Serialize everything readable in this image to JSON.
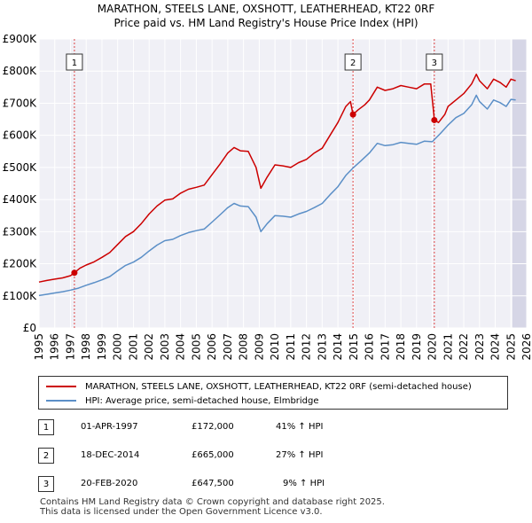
{
  "chart_data": {
    "type": "line",
    "title": "MARATHON, STEELS LANE, OXSHOTT, LEATHERHEAD, KT22 0RF",
    "subtitle": "Price paid vs. HM Land Registry's House Price Index (HPI)",
    "xlabel": "",
    "ylabel": "",
    "xlim": [
      1995,
      2026
    ],
    "ylim": [
      0,
      900000
    ],
    "y_ticks": [
      0,
      100000,
      200000,
      300000,
      400000,
      500000,
      600000,
      700000,
      800000,
      900000
    ],
    "y_tick_labels": [
      "£0",
      "£100K",
      "£200K",
      "£300K",
      "£400K",
      "£500K",
      "£600K",
      "£700K",
      "£800K",
      "£900K"
    ],
    "x_ticks": [
      1995,
      1996,
      1997,
      1998,
      1999,
      2000,
      2001,
      2002,
      2003,
      2004,
      2005,
      2006,
      2007,
      2008,
      2009,
      2010,
      2011,
      2012,
      2013,
      2014,
      2015,
      2016,
      2017,
      2018,
      2019,
      2020,
      2021,
      2022,
      2023,
      2024,
      2025,
      2026
    ],
    "x_tick_labels": [
      "1995",
      "1996",
      "1997",
      "1998",
      "1999",
      "2000",
      "2001",
      "2002",
      "2003",
      "2004",
      "2005",
      "2006",
      "2007",
      "2008",
      "2009",
      "2010",
      "2011",
      "2012",
      "2013",
      "2014",
      "2015",
      "2016",
      "2017",
      "2018",
      "2019",
      "2020",
      "2021",
      "2022",
      "2023",
      "2024",
      "2025",
      "2026"
    ],
    "grid": true,
    "future_shade_from": 2025.1,
    "series": [
      {
        "name": "MARATHON, STEELS LANE, OXSHOTT, LEATHERHEAD, KT22 0RF (semi-detached house)",
        "color": "#cc0000",
        "x": [
          1995.0,
          1995.5,
          1996.0,
          1996.5,
          1997.0,
          1997.25,
          1997.6,
          1998.0,
          1998.5,
          1999.0,
          1999.5,
          2000.0,
          2000.5,
          2001.0,
          2001.5,
          2002.0,
          2002.5,
          2003.0,
          2003.5,
          2004.0,
          2004.5,
          2005.0,
          2005.5,
          2006.0,
          2006.5,
          2007.0,
          2007.4,
          2007.8,
          2008.3,
          2008.8,
          2009.1,
          2009.5,
          2010.0,
          2010.5,
          2011.0,
          2011.5,
          2012.0,
          2012.5,
          2013.0,
          2013.5,
          2014.0,
          2014.5,
          2014.8,
          2014.96,
          2015.3,
          2015.7,
          2016.0,
          2016.5,
          2017.0,
          2017.5,
          2018.0,
          2018.5,
          2019.0,
          2019.5,
          2019.9,
          2020.13,
          2020.4,
          2020.8,
          2021.0,
          2021.5,
          2022.0,
          2022.5,
          2022.8,
          2023.0,
          2023.5,
          2023.9,
          2024.3,
          2024.7,
          2025.0,
          2025.3
        ],
        "values": [
          143000,
          148000,
          152000,
          156000,
          163000,
          172000,
          186000,
          196000,
          206000,
          220000,
          235000,
          260000,
          285000,
          300000,
          325000,
          355000,
          380000,
          398000,
          402000,
          420000,
          432000,
          438000,
          445000,
          478000,
          510000,
          545000,
          562000,
          552000,
          550000,
          500000,
          435000,
          470000,
          508000,
          505000,
          500000,
          515000,
          525000,
          545000,
          560000,
          600000,
          640000,
          690000,
          705000,
          665000,
          680000,
          695000,
          710000,
          750000,
          740000,
          745000,
          755000,
          750000,
          745000,
          760000,
          760000,
          647500,
          640000,
          665000,
          690000,
          710000,
          730000,
          760000,
          790000,
          770000,
          745000,
          775000,
          765000,
          750000,
          775000,
          770000
        ]
      },
      {
        "name": "HPI: Average price, semi-detached house, Elmbridge",
        "color": "#5b8fc7",
        "x": [
          1995.0,
          1995.5,
          1996.0,
          1996.5,
          1997.0,
          1997.5,
          1998.0,
          1998.5,
          1999.0,
          1999.5,
          2000.0,
          2000.5,
          2001.0,
          2001.5,
          2002.0,
          2002.5,
          2003.0,
          2003.5,
          2004.0,
          2004.5,
          2005.0,
          2005.5,
          2006.0,
          2006.5,
          2007.0,
          2007.4,
          2007.8,
          2008.3,
          2008.8,
          2009.1,
          2009.5,
          2010.0,
          2010.5,
          2011.0,
          2011.5,
          2012.0,
          2012.5,
          2013.0,
          2013.5,
          2014.0,
          2014.5,
          2015.0,
          2015.5,
          2016.0,
          2016.5,
          2017.0,
          2017.5,
          2018.0,
          2018.5,
          2019.0,
          2019.5,
          2020.0,
          2020.5,
          2021.0,
          2021.5,
          2022.0,
          2022.5,
          2022.8,
          2023.0,
          2023.5,
          2023.9,
          2024.3,
          2024.7,
          2025.0,
          2025.3
        ],
        "values": [
          101000,
          105000,
          109000,
          113000,
          118000,
          124000,
          133000,
          141000,
          150000,
          160000,
          178000,
          195000,
          205000,
          220000,
          240000,
          258000,
          272000,
          276000,
          288000,
          297000,
          303000,
          308000,
          330000,
          352000,
          375000,
          388000,
          380000,
          378000,
          345000,
          300000,
          325000,
          350000,
          348000,
          345000,
          355000,
          363000,
          375000,
          388000,
          415000,
          440000,
          475000,
          500000,
          522000,
          545000,
          575000,
          568000,
          571000,
          578000,
          575000,
          572000,
          582000,
          580000,
          605000,
          632000,
          655000,
          668000,
          695000,
          725000,
          705000,
          682000,
          710000,
          702000,
          690000,
          712000,
          710000
        ]
      }
    ],
    "sales": [
      {
        "label": "1",
        "x": 1997.25,
        "price": 172000
      },
      {
        "label": "2",
        "x": 2014.96,
        "price": 665000
      },
      {
        "label": "3",
        "x": 2020.13,
        "price": 647500
      }
    ]
  },
  "legend": {
    "entries": [
      {
        "label": "MARATHON, STEELS LANE, OXSHOTT, LEATHERHEAD, KT22 0RF (semi-detached house)",
        "color": "#cc0000"
      },
      {
        "label": "HPI: Average price, semi-detached house, Elmbridge",
        "color": "#5b8fc7"
      }
    ]
  },
  "transactions": [
    {
      "num": "1",
      "date": "01-APR-1997",
      "price": "£172,000",
      "hpi": "41% ↑ HPI"
    },
    {
      "num": "2",
      "date": "18-DEC-2014",
      "price": "£665,000",
      "hpi": "27% ↑ HPI"
    },
    {
      "num": "3",
      "date": "20-FEB-2020",
      "price": "£647,500",
      "hpi": "9% ↑ HPI"
    }
  ],
  "footer": {
    "line1": "Contains HM Land Registry data © Crown copyright and database right 2025.",
    "line2": "This data is licensed under the Open Government Licence v3.0."
  }
}
